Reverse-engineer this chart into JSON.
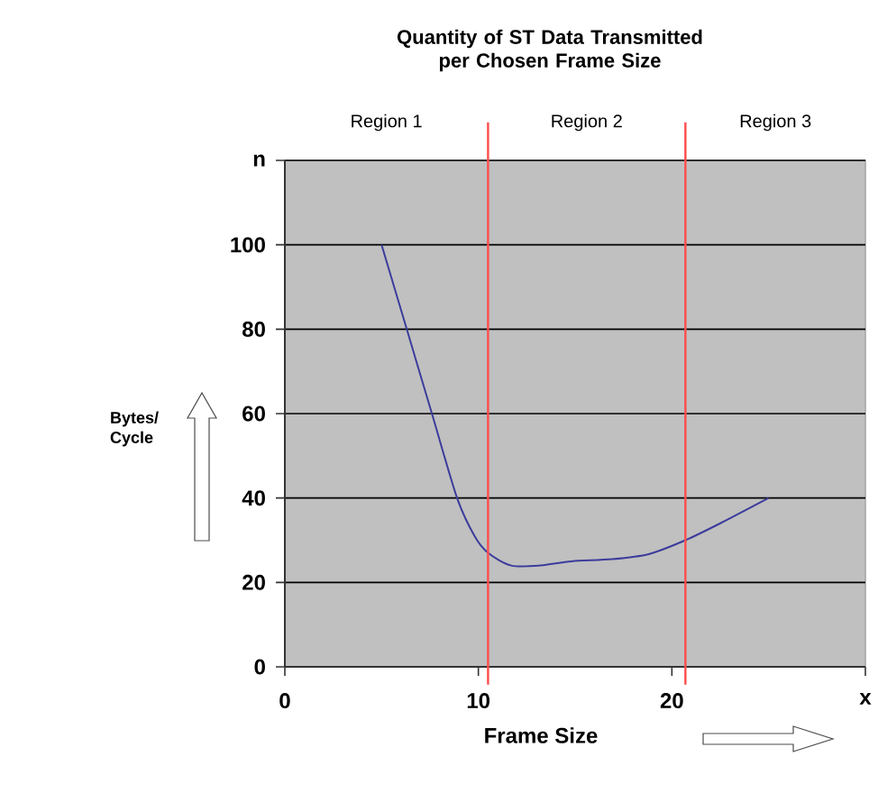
{
  "chart_data": {
    "type": "line",
    "title": "Quantity of ST Data Transmitted per Chosen Frame Size",
    "xlabel": "Frame Size",
    "ylabel": "Bytes/ Cycle",
    "x": [
      5,
      6.3,
      7.6,
      8.9,
      9.8,
      10.5,
      11.7,
      13.2,
      14.8,
      16.9,
      18.8,
      20.7,
      22.5,
      25
    ],
    "series": [
      {
        "color": "#3c3c9c",
        "values": [
          100,
          80,
          60,
          40,
          31,
          27,
          24,
          24,
          25,
          25.5,
          26.7,
          30,
          34,
          40
        ]
      }
    ],
    "xlim": [
      0,
      30
    ],
    "ylim": [
      0,
      120
    ],
    "xticks": [
      0,
      10,
      20,
      {
        "value": 30,
        "label": "x"
      }
    ],
    "yticks": [
      0,
      20,
      40,
      60,
      80,
      100,
      {
        "value": 120,
        "label": "n"
      }
    ],
    "grid": "y",
    "marker": "none",
    "line_style": "solid",
    "ref_lines": [
      {
        "axis": "x",
        "value": 10.5,
        "color": "#ff4d4d"
      },
      {
        "axis": "x",
        "value": 20.7,
        "color": "#ff4d4d"
      }
    ],
    "annotations": [
      "Region 1",
      "Region 2",
      "Region 3"
    ]
  }
}
